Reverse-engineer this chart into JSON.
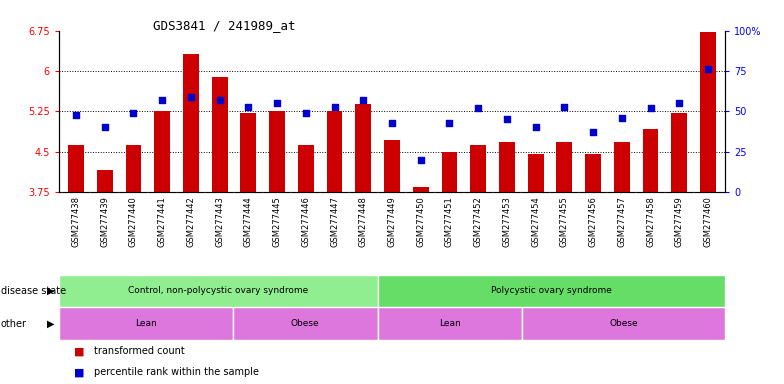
{
  "title": "GDS3841 / 241989_at",
  "samples": [
    "GSM277438",
    "GSM277439",
    "GSM277440",
    "GSM277441",
    "GSM277442",
    "GSM277443",
    "GSM277444",
    "GSM277445",
    "GSM277446",
    "GSM277447",
    "GSM277448",
    "GSM277449",
    "GSM277450",
    "GSM277451",
    "GSM277452",
    "GSM277453",
    "GSM277454",
    "GSM277455",
    "GSM277456",
    "GSM277457",
    "GSM277458",
    "GSM277459",
    "GSM277460"
  ],
  "transformed_count": [
    4.62,
    4.15,
    4.62,
    5.25,
    6.32,
    5.88,
    5.22,
    5.25,
    4.62,
    5.25,
    5.38,
    4.72,
    3.85,
    4.5,
    4.62,
    4.68,
    4.45,
    4.68,
    4.45,
    4.68,
    4.92,
    5.22,
    6.72
  ],
  "percentile_rank": [
    48,
    40,
    49,
    57,
    59,
    57,
    53,
    55,
    49,
    53,
    57,
    43,
    20,
    43,
    52,
    45,
    40,
    53,
    37,
    46,
    52,
    55,
    76
  ],
  "ylim_left": [
    3.75,
    6.75
  ],
  "ylim_right": [
    0,
    100
  ],
  "yticks_left": [
    3.75,
    4.5,
    5.25,
    6.0,
    6.75
  ],
  "yticks_right": [
    0,
    25,
    50,
    75,
    100
  ],
  "ytick_labels_left": [
    "3.75",
    "4.5",
    "5.25",
    "6",
    "6.75"
  ],
  "ytick_labels_right": [
    "0",
    "25",
    "50",
    "75",
    "100%"
  ],
  "hlines": [
    4.5,
    5.25,
    6.0
  ],
  "bar_color": "#cc0000",
  "dot_color": "#0000cc",
  "disease_state_groups": [
    {
      "label": "Control, non-polycystic ovary syndrome",
      "start": 0,
      "end": 11,
      "color": "#90ee90"
    },
    {
      "label": "Polycystic ovary syndrome",
      "start": 11,
      "end": 23,
      "color": "#66dd66"
    }
  ],
  "other_groups": [
    {
      "label": "Lean",
      "start": 0,
      "end": 6,
      "color": "#dd77dd"
    },
    {
      "label": "Obese",
      "start": 6,
      "end": 11,
      "color": "#dd77dd"
    },
    {
      "label": "Lean",
      "start": 11,
      "end": 16,
      "color": "#dd77dd"
    },
    {
      "label": "Obese",
      "start": 16,
      "end": 23,
      "color": "#dd77dd"
    }
  ],
  "disease_state_label": "disease state",
  "other_label": "other",
  "legend_items": [
    {
      "label": "transformed count",
      "color": "#cc0000"
    },
    {
      "label": "percentile rank within the sample",
      "color": "#0000cc"
    }
  ],
  "xtick_bg": "#e0e0e0",
  "plot_bg": "#ffffff"
}
